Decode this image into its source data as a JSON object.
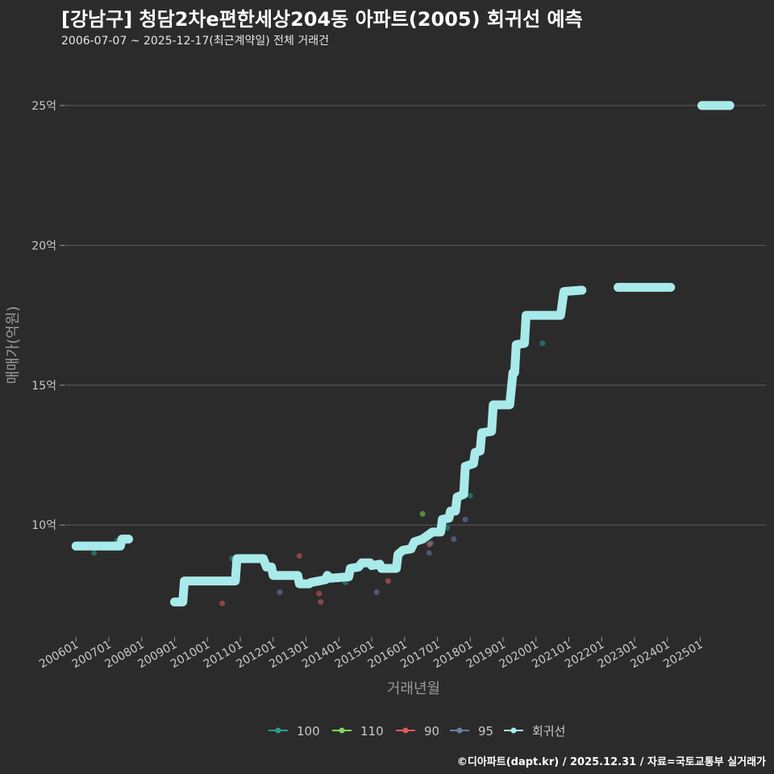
{
  "title": "[강남구] 청담2차e편한세상204동 아파트(2005) 회귀선 예측",
  "subtitle": "2006-07-07 ~ 2025-12-17(최근계약일) 전체 거래건",
  "caption": "©디아파트(dapt.kr) / 2025.12.31 / 자료=국토교통부 실거래가",
  "colors": {
    "background": "#2b2b2b",
    "grid": "#5a5a5a",
    "regression": "#a8eaea",
    "s100": "#2a9d8f",
    "s110": "#7ed957",
    "s90": "#e05a5a",
    "s95": "#6a7fa8"
  },
  "chart_data": {
    "type": "scatter",
    "xlabel": "거래년월",
    "ylabel": "매매가(억원)",
    "x_domain": [
      2005.65,
      2027.0
    ],
    "ylim": [
      6.0,
      26.9
    ],
    "yticks": [
      {
        "value": 10,
        "label": "10억"
      },
      {
        "value": 15,
        "label": "15억"
      },
      {
        "value": 20,
        "label": "20억"
      },
      {
        "value": 25,
        "label": "25억"
      }
    ],
    "xticks": [
      {
        "value": 2006,
        "label": "200601"
      },
      {
        "value": 2007,
        "label": "200701"
      },
      {
        "value": 2008,
        "label": "200801"
      },
      {
        "value": 2009,
        "label": "200901"
      },
      {
        "value": 2010,
        "label": "201001"
      },
      {
        "value": 2011,
        "label": "201101"
      },
      {
        "value": 2012,
        "label": "201201"
      },
      {
        "value": 2013,
        "label": "201301"
      },
      {
        "value": 2014,
        "label": "201401"
      },
      {
        "value": 2015,
        "label": "201501"
      },
      {
        "value": 2016,
        "label": "201601"
      },
      {
        "value": 2017,
        "label": "201701"
      },
      {
        "value": 2018,
        "label": "201801"
      },
      {
        "value": 2019,
        "label": "201901"
      },
      {
        "value": 2020,
        "label": "202001"
      },
      {
        "value": 2021,
        "label": "202101"
      },
      {
        "value": 2022,
        "label": "202201"
      },
      {
        "value": 2023,
        "label": "202301"
      },
      {
        "value": 2024,
        "label": "202401"
      },
      {
        "value": 2025,
        "label": "202501"
      }
    ],
    "series": [
      {
        "name": "100",
        "color": "#2a9d8f",
        "points": [
          {
            "x": 2006.55,
            "y": 9.0
          },
          {
            "x": 2007.25,
            "y": 9.45
          },
          {
            "x": 2010.75,
            "y": 8.8
          },
          {
            "x": 2014.2,
            "y": 7.95
          },
          {
            "x": 2017.3,
            "y": 9.9
          },
          {
            "x": 2018.0,
            "y": 11.05
          },
          {
            "x": 2018.9,
            "y": 14.3
          },
          {
            "x": 2020.2,
            "y": 16.5
          },
          {
            "x": 2021.45,
            "y": 18.4
          }
        ]
      },
      {
        "name": "110",
        "color": "#7ed957",
        "points": [
          {
            "x": 2016.55,
            "y": 10.4
          }
        ]
      },
      {
        "name": "90",
        "color": "#e05a5a",
        "points": [
          {
            "x": 2010.45,
            "y": 7.2
          },
          {
            "x": 2012.8,
            "y": 8.9
          },
          {
            "x": 2013.4,
            "y": 7.55
          },
          {
            "x": 2013.45,
            "y": 7.25
          },
          {
            "x": 2015.5,
            "y": 8.0
          },
          {
            "x": 2016.75,
            "y": 9.3
          }
        ]
      },
      {
        "name": "95",
        "color": "#6a7fa8",
        "points": [
          {
            "x": 2012.2,
            "y": 7.6
          },
          {
            "x": 2015.15,
            "y": 7.6
          },
          {
            "x": 2016.75,
            "y": 9.0
          },
          {
            "x": 2016.8,
            "y": 9.35
          },
          {
            "x": 2017.5,
            "y": 9.5
          },
          {
            "x": 2017.85,
            "y": 10.2
          }
        ]
      }
    ],
    "regression": {
      "name": "회귀선",
      "color": "#a8eaea",
      "segments": [
        [
          [
            2006.0,
            9.25
          ],
          [
            2007.35,
            9.25
          ],
          [
            2007.4,
            9.5
          ],
          [
            2007.6,
            9.5
          ]
        ],
        [
          [
            2009.0,
            7.25
          ],
          [
            2009.25,
            7.25
          ],
          [
            2009.3,
            8.0
          ],
          [
            2010.6,
            8.0
          ],
          [
            2010.85,
            8.0
          ],
          [
            2010.9,
            8.8
          ],
          [
            2011.7,
            8.8
          ],
          [
            2011.8,
            8.5
          ],
          [
            2011.95,
            8.5
          ],
          [
            2012.0,
            8.2
          ],
          [
            2012.75,
            8.2
          ],
          [
            2012.8,
            7.9
          ],
          [
            2013.1,
            7.9
          ],
          [
            2013.15,
            7.95
          ],
          [
            2013.4,
            8.0
          ],
          [
            2013.6,
            8.05
          ],
          [
            2013.65,
            8.2
          ],
          [
            2013.75,
            8.1
          ],
          [
            2014.3,
            8.15
          ],
          [
            2014.35,
            8.45
          ],
          [
            2014.6,
            8.5
          ],
          [
            2014.7,
            8.65
          ],
          [
            2014.95,
            8.65
          ],
          [
            2015.0,
            8.55
          ],
          [
            2015.25,
            8.6
          ],
          [
            2015.3,
            8.45
          ],
          [
            2015.65,
            8.45
          ],
          [
            2015.75,
            8.45
          ],
          [
            2015.8,
            8.95
          ],
          [
            2015.95,
            9.1
          ],
          [
            2016.2,
            9.15
          ],
          [
            2016.3,
            9.4
          ],
          [
            2016.55,
            9.5
          ],
          [
            2016.85,
            9.75
          ],
          [
            2017.1,
            9.75
          ],
          [
            2017.15,
            10.2
          ],
          [
            2017.35,
            10.25
          ],
          [
            2017.4,
            10.5
          ],
          [
            2017.55,
            10.5
          ],
          [
            2017.6,
            11.0
          ],
          [
            2017.8,
            11.1
          ],
          [
            2017.85,
            12.1
          ],
          [
            2018.1,
            12.2
          ],
          [
            2018.15,
            12.6
          ],
          [
            2018.3,
            12.65
          ],
          [
            2018.35,
            13.3
          ],
          [
            2018.65,
            13.35
          ],
          [
            2018.7,
            14.3
          ],
          [
            2019.2,
            14.3
          ],
          [
            2019.3,
            15.45
          ],
          [
            2019.35,
            15.45
          ],
          [
            2019.4,
            16.45
          ],
          [
            2019.65,
            16.5
          ],
          [
            2019.7,
            17.5
          ],
          [
            2020.75,
            17.5
          ],
          [
            2020.85,
            18.35
          ],
          [
            2021.4,
            18.4
          ]
        ],
        [
          [
            2022.5,
            18.5
          ],
          [
            2024.1,
            18.5
          ]
        ],
        [
          [
            2025.05,
            25.0
          ],
          [
            2025.9,
            25.0
          ]
        ]
      ]
    },
    "legend": [
      {
        "label": "100",
        "color": "#2a9d8f"
      },
      {
        "label": "110",
        "color": "#7ed957"
      },
      {
        "label": "90",
        "color": "#e05a5a"
      },
      {
        "label": "95",
        "color": "#6a7fa8"
      },
      {
        "label": "회귀선",
        "color": "#a8eaea"
      }
    ],
    "legend_position": "bottom"
  }
}
